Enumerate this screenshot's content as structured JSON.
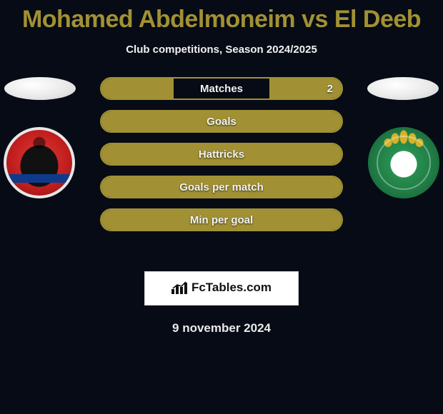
{
  "title": "Mohamed Abdelmoneim vs El Deeb",
  "subtitle": "Club competitions, Season 2024/2025",
  "footer_date": "9 november 2024",
  "brand": "FcTables.com",
  "colors": {
    "accent": "#a19134",
    "background": "#060b15",
    "text_light": "#f2f2f2",
    "border_light": "#d7d7d7"
  },
  "teams": {
    "left": {
      "crest_primary": "#c31f1f",
      "crest_secondary": "#0f3a8c"
    },
    "right": {
      "crest_primary": "#1f7a44",
      "crest_star": "#d6b22a"
    }
  },
  "stats": [
    {
      "label": "Matches",
      "mode": "split",
      "left_pct": 30,
      "right_pct": 30,
      "left_val": "",
      "right_val": "2"
    },
    {
      "label": "Goals",
      "mode": "full"
    },
    {
      "label": "Hattricks",
      "mode": "full"
    },
    {
      "label": "Goals per match",
      "mode": "full"
    },
    {
      "label": "Min per goal",
      "mode": "full"
    }
  ]
}
